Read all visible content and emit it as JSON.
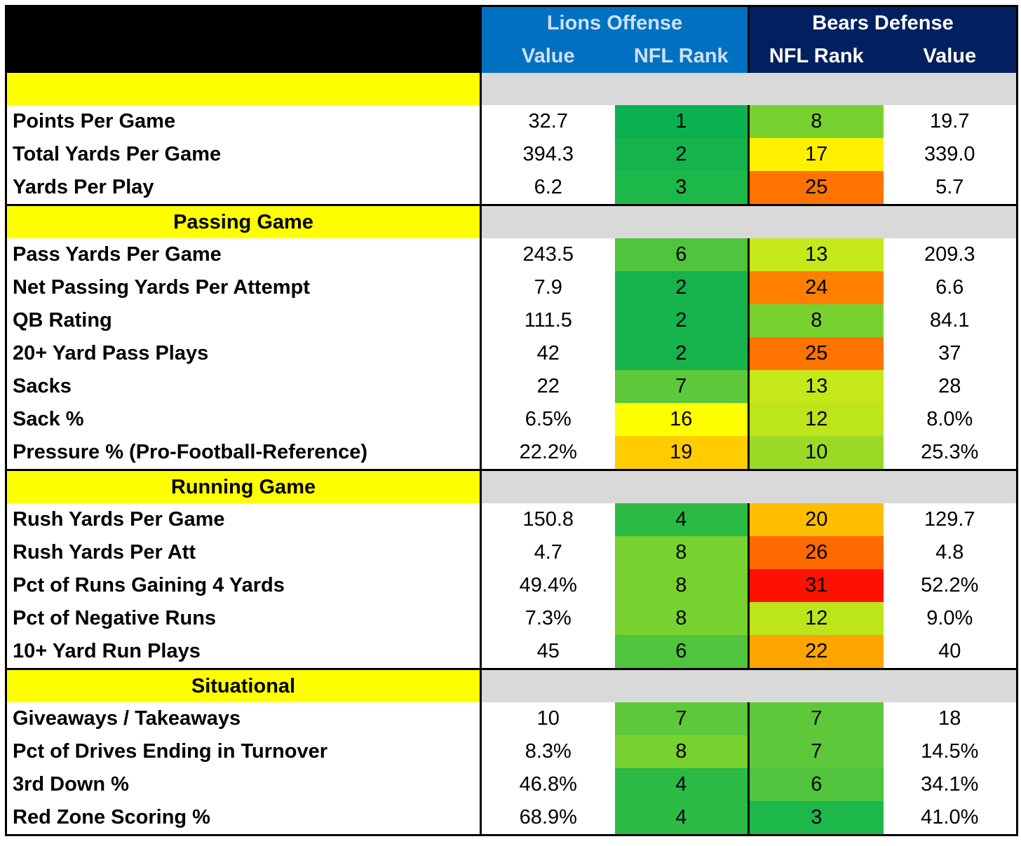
{
  "chart_data": {
    "type": "table",
    "header": {
      "lions_group": "Lions Offense",
      "bears_group": "Bears Defense",
      "lions_value": "Value",
      "lions_rank": "NFL Rank",
      "bears_rank": "NFL Rank",
      "bears_value": "Value"
    },
    "colors": {
      "rank_1": "#0bb14f",
      "rank_2": "#16b34c",
      "rank_3": "#1db84a",
      "rank_4": "#2bbb45",
      "rank_6": "#4fc43c",
      "rank_7": "#5cc83a",
      "rank_8": "#77d12f",
      "rank_10": "#9ad926",
      "rank_12": "#bde51b",
      "rank_13": "#c4e81a",
      "rank_16": "#ffff00",
      "rank_17": "#fff000",
      "rank_19": "#ffcc00",
      "rank_20": "#ffbf00",
      "rank_22": "#ffa500",
      "rank_24": "#ff8000",
      "rank_25": "#ff7300",
      "rank_26": "#ff6a00",
      "rank_31": "#ff1100"
    },
    "sections": [
      {
        "title": "",
        "rows": [
          {
            "label": "Points Per Game",
            "lions_value": "32.7",
            "lions_rank": "1",
            "bears_rank": "8",
            "bears_value": "19.7",
            "lions_color": "#0bb14f",
            "bears_color": "#77d12f"
          },
          {
            "label": "Total Yards Per Game",
            "lions_value": "394.3",
            "lions_rank": "2",
            "bears_rank": "17",
            "bears_value": "339.0",
            "lions_color": "#16b34c",
            "bears_color": "#fff000"
          },
          {
            "label": "Yards Per Play",
            "lions_value": "6.2",
            "lions_rank": "3",
            "bears_rank": "25",
            "bears_value": "5.7",
            "lions_color": "#1db84a",
            "bears_color": "#ff7300"
          }
        ]
      },
      {
        "title": "Passing Game",
        "rows": [
          {
            "label": "Pass Yards Per Game",
            "lions_value": "243.5",
            "lions_rank": "6",
            "bears_rank": "13",
            "bears_value": "209.3",
            "lions_color": "#4fc43c",
            "bears_color": "#c4e81a"
          },
          {
            "label": "Net Passing Yards Per Attempt",
            "lions_value": "7.9",
            "lions_rank": "2",
            "bears_rank": "24",
            "bears_value": "6.6",
            "lions_color": "#16b34c",
            "bears_color": "#ff8000"
          },
          {
            "label": "QB Rating",
            "lions_value": "111.5",
            "lions_rank": "2",
            "bears_rank": "8",
            "bears_value": "84.1",
            "lions_color": "#16b34c",
            "bears_color": "#77d12f"
          },
          {
            "label": "20+ Yard Pass Plays",
            "lions_value": "42",
            "lions_rank": "2",
            "bears_rank": "25",
            "bears_value": "37",
            "lions_color": "#16b34c",
            "bears_color": "#ff7300"
          },
          {
            "label": "Sacks",
            "lions_value": "22",
            "lions_rank": "7",
            "bears_rank": "13",
            "bears_value": "28",
            "lions_color": "#5cc83a",
            "bears_color": "#c4e81a"
          },
          {
            "label": "Sack %",
            "lions_value": "6.5%",
            "lions_rank": "16",
            "bears_rank": "12",
            "bears_value": "8.0%",
            "lions_color": "#ffff00",
            "bears_color": "#bde51b"
          },
          {
            "label": "Pressure % (Pro-Football-Reference)",
            "lions_value": "22.2%",
            "lions_rank": "19",
            "bears_rank": "10",
            "bears_value": "25.3%",
            "lions_color": "#ffcc00",
            "bears_color": "#9ad926"
          }
        ]
      },
      {
        "title": "Running Game",
        "rows": [
          {
            "label": "Rush Yards Per Game",
            "lions_value": "150.8",
            "lions_rank": "4",
            "bears_rank": "20",
            "bears_value": "129.7",
            "lions_color": "#2bbb45",
            "bears_color": "#ffbf00"
          },
          {
            "label": "Rush Yards Per Att",
            "lions_value": "4.7",
            "lions_rank": "8",
            "bears_rank": "26",
            "bears_value": "4.8",
            "lions_color": "#77d12f",
            "bears_color": "#ff6a00"
          },
          {
            "label": "Pct of Runs Gaining 4 Yards",
            "lions_value": "49.4%",
            "lions_rank": "8",
            "bears_rank": "31",
            "bears_value": "52.2%",
            "lions_color": "#77d12f",
            "bears_color": "#ff1100"
          },
          {
            "label": "Pct of Negative Runs",
            "lions_value": "7.3%",
            "lions_rank": "8",
            "bears_rank": "12",
            "bears_value": "9.0%",
            "lions_color": "#77d12f",
            "bears_color": "#bde51b"
          },
          {
            "label": "10+ Yard Run Plays",
            "lions_value": "45",
            "lions_rank": "6",
            "bears_rank": "22",
            "bears_value": "40",
            "lions_color": "#4fc43c",
            "bears_color": "#ffa500"
          }
        ]
      },
      {
        "title": "Situational",
        "rows": [
          {
            "label": "Giveaways / Takeaways",
            "lions_value": "10",
            "lions_rank": "7",
            "bears_rank": "7",
            "bears_value": "18",
            "lions_color": "#5cc83a",
            "bears_color": "#5cc83a"
          },
          {
            "label": "Pct of Drives Ending in Turnover",
            "lions_value": "8.3%",
            "lions_rank": "8",
            "bears_rank": "7",
            "bears_value": "14.5%",
            "lions_color": "#77d12f",
            "bears_color": "#5cc83a"
          },
          {
            "label": "3rd Down %",
            "lions_value": "46.8%",
            "lions_rank": "4",
            "bears_rank": "6",
            "bears_value": "34.1%",
            "lions_color": "#2bbb45",
            "bears_color": "#4fc43c"
          },
          {
            "label": "Red Zone Scoring %",
            "lions_value": "68.9%",
            "lions_rank": "4",
            "bears_rank": "3",
            "bears_value": "41.0%",
            "lions_color": "#2bbb45",
            "bears_color": "#1db84a"
          }
        ]
      }
    ]
  }
}
